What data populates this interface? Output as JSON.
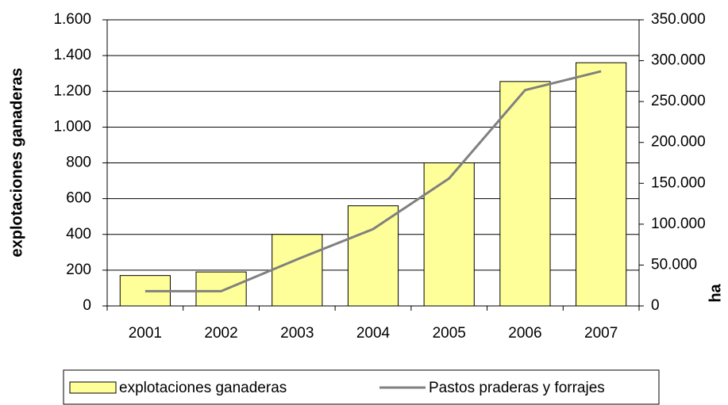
{
  "chart_data": {
    "type": "bar",
    "categories": [
      "2001",
      "2002",
      "2003",
      "2004",
      "2005",
      "2006",
      "2007"
    ],
    "series": [
      {
        "name": "explotaciones ganaderas",
        "type": "bar",
        "color": "#ffff99",
        "values": [
          170,
          190,
          400,
          560,
          800,
          1255,
          1360
        ]
      },
      {
        "name": "Pastos praderas y forrajes",
        "type": "line",
        "axis": "y2",
        "color": "#808080",
        "values": [
          18000,
          18000,
          57000,
          94000,
          156000,
          264000,
          287000
        ]
      }
    ],
    "ylabel": "explotaciones ganaderas",
    "y2label": "ha",
    "ylim": [
      0,
      1600
    ],
    "yticks": [
      0,
      200,
      400,
      600,
      800,
      {
        "value": 1000,
        "label": "1.000"
      },
      {
        "value": 1200,
        "label": "1.200"
      },
      {
        "value": 1400,
        "label": "1.400"
      },
      {
        "value": 1600,
        "label": "1.600"
      }
    ],
    "y2lim": [
      0,
      350000
    ],
    "y2ticks": [
      0,
      {
        "value": 50000,
        "label": "50.000"
      },
      {
        "value": 100000,
        "label": "100.000"
      },
      {
        "value": 150000,
        "label": "150.000"
      },
      {
        "value": 200000,
        "label": "200.000"
      },
      {
        "value": 250000,
        "label": "250.000"
      },
      {
        "value": 300000,
        "label": "300.000"
      },
      {
        "value": 350000,
        "label": "350.000"
      }
    ],
    "grid": true,
    "legend": "bottom"
  }
}
